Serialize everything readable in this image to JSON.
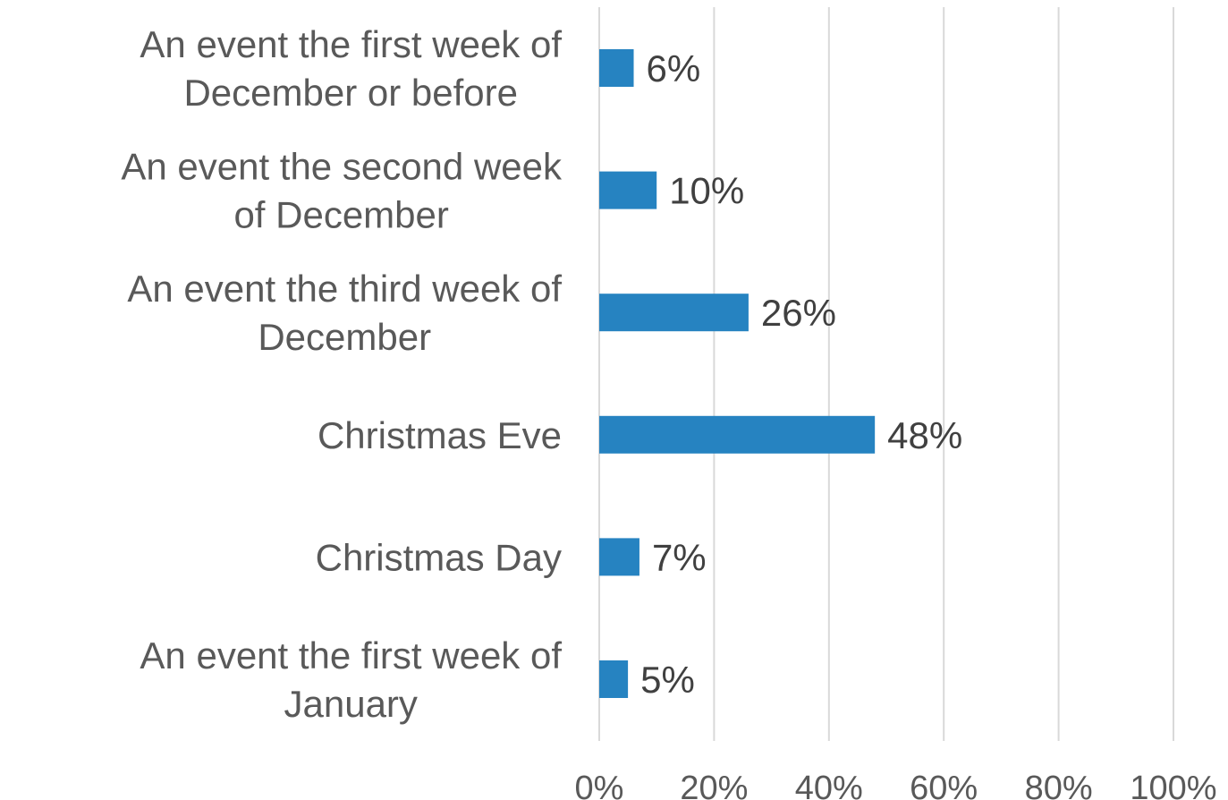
{
  "chart_data": {
    "type": "bar",
    "orientation": "horizontal",
    "categories": [
      "An event the first week of December or before",
      "An event the second week of December",
      "An event the third week of December",
      "Christmas Eve",
      "Christmas Day",
      "An event the first week of January"
    ],
    "values": [
      6,
      10,
      26,
      48,
      7,
      5
    ],
    "value_labels": [
      "6%",
      "10%",
      "26%",
      "48%",
      "7%",
      "5%"
    ],
    "xlim": [
      0,
      100
    ],
    "x_ticks": [
      "0%",
      "20%",
      "40%",
      "60%",
      "80%",
      "100%"
    ],
    "grid": true,
    "bar_color": "#2683c1",
    "title": "",
    "xlabel": "",
    "ylabel": ""
  }
}
